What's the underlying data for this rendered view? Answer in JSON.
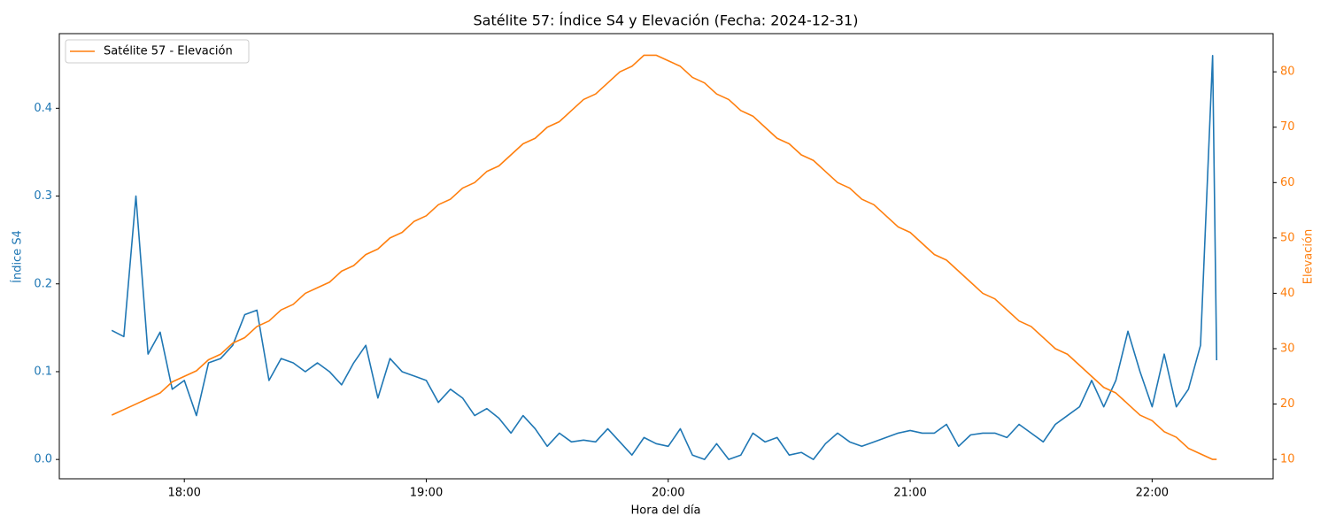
{
  "chart_data": {
    "type": "line",
    "title": "Satélite 57: Índice S4 y Elevación (Fecha: 2024-12-31)",
    "x_label": "Hora del día",
    "y_label": "Índice S4",
    "y2_label": "Elevación",
    "x": [
      "17:42",
      "17:45",
      "17:48",
      "17:51",
      "17:54",
      "17:57",
      "18:00",
      "18:03",
      "18:06",
      "18:09",
      "18:12",
      "18:15",
      "18:18",
      "18:21",
      "18:24",
      "18:27",
      "18:30",
      "18:33",
      "18:36",
      "18:39",
      "18:42",
      "18:45",
      "18:48",
      "18:51",
      "18:54",
      "18:57",
      "19:00",
      "19:03",
      "19:06",
      "19:09",
      "19:12",
      "19:15",
      "19:18",
      "19:21",
      "19:24",
      "19:27",
      "19:30",
      "19:33",
      "19:36",
      "19:39",
      "19:42",
      "19:45",
      "19:48",
      "19:51",
      "19:54",
      "19:57",
      "20:00",
      "20:03",
      "20:06",
      "20:09",
      "20:12",
      "20:15",
      "20:18",
      "20:21",
      "20:24",
      "20:27",
      "20:30",
      "20:33",
      "20:36",
      "20:39",
      "20:42",
      "20:45",
      "20:48",
      "20:51",
      "20:54",
      "20:57",
      "21:00",
      "21:03",
      "21:06",
      "21:09",
      "21:12",
      "21:15",
      "21:18",
      "21:21",
      "21:24",
      "21:27",
      "21:30",
      "21:33",
      "21:36",
      "21:39",
      "21:42",
      "21:45",
      "21:48",
      "21:51",
      "21:54",
      "21:57",
      "22:00",
      "22:03",
      "22:06",
      "22:09",
      "22:12",
      "22:15",
      "22:16"
    ],
    "series": [
      {
        "color": "#1f77b4",
        "axis": "y",
        "values": [
          0.147,
          0.14,
          0.3,
          0.12,
          0.145,
          0.08,
          0.09,
          0.05,
          0.11,
          0.115,
          0.13,
          0.165,
          0.17,
          0.09,
          0.115,
          0.11,
          0.1,
          0.11,
          0.1,
          0.085,
          0.11,
          0.13,
          0.07,
          0.115,
          0.1,
          0.095,
          0.09,
          0.065,
          0.08,
          0.07,
          0.05,
          0.058,
          0.047,
          0.03,
          0.05,
          0.035,
          0.015,
          0.03,
          0.02,
          0.022,
          0.02,
          0.035,
          0.02,
          0.005,
          0.025,
          0.018,
          0.015,
          0.035,
          0.005,
          0.0,
          0.018,
          0.0,
          0.005,
          0.03,
          0.02,
          0.025,
          0.005,
          0.008,
          0.0,
          0.018,
          0.03,
          0.02,
          0.015,
          0.02,
          0.025,
          0.03,
          0.033,
          0.03,
          0.03,
          0.04,
          0.015,
          0.028,
          0.03,
          0.03,
          0.025,
          0.04,
          0.03,
          0.02,
          0.04,
          0.05,
          0.06,
          0.09,
          0.06,
          0.09,
          0.146,
          0.1,
          0.06,
          0.12,
          0.06,
          0.08,
          0.13,
          0.46,
          0.113
        ]
      },
      {
        "name": "Satélite 57 - Elevación",
        "color": "#ff7f0e",
        "axis": "y2",
        "values": [
          18,
          19,
          20,
          21,
          22,
          24,
          25,
          26,
          28,
          29,
          31,
          32,
          34,
          35,
          37,
          38,
          40,
          41,
          42,
          44,
          45,
          47,
          48,
          50,
          51,
          53,
          54,
          56,
          57,
          59,
          60,
          62,
          63,
          65,
          67,
          68,
          70,
          71,
          73,
          75,
          76,
          78,
          80,
          81,
          83,
          83,
          82,
          81,
          79,
          78,
          76,
          75,
          73,
          72,
          70,
          68,
          67,
          65,
          64,
          62,
          60,
          59,
          57,
          56,
          54,
          52,
          51,
          49,
          47,
          46,
          44,
          42,
          40,
          39,
          37,
          35,
          34,
          32,
          30,
          29,
          27,
          25,
          23,
          22,
          20,
          18,
          17,
          15,
          14,
          12,
          11,
          10,
          10
        ]
      }
    ],
    "xlim": [
      "17:29",
      "22:30"
    ],
    "xticks": [
      "18:00",
      "19:00",
      "20:00",
      "21:00",
      "22:00"
    ],
    "ylim": [
      -0.022,
      0.485
    ],
    "yticks": [
      {
        "value": 0,
        "label": "0.0"
      },
      0.1,
      0.2,
      0.3,
      0.4
    ],
    "y2lim": [
      6.5,
      86.9
    ],
    "y2ticks": [
      10,
      20,
      30,
      40,
      50,
      60,
      70,
      80
    ],
    "legend": "upper left",
    "grid": false
  }
}
